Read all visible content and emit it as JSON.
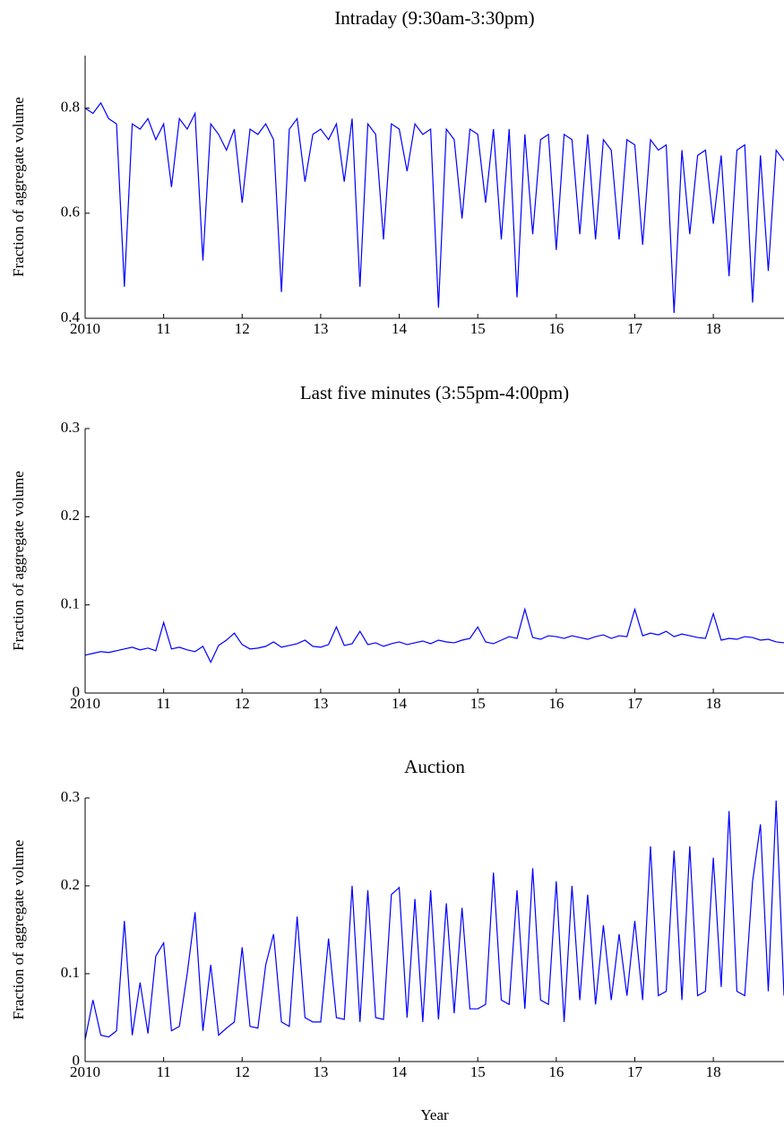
{
  "chart_data": [
    {
      "type": "line",
      "title": "Intraday (9:30am-3:30pm)",
      "ylabel": "Fraction of aggregate volume",
      "xlim": [
        2010,
        2018.9
      ],
      "ylim": [
        0.4,
        0.9
      ],
      "xticks": [
        {
          "value": 2010,
          "label": "2010"
        },
        {
          "value": 2011,
          "label": "11"
        },
        {
          "value": 2012,
          "label": "12"
        },
        {
          "value": 2013,
          "label": "13"
        },
        {
          "value": 2014,
          "label": "14"
        },
        {
          "value": 2015,
          "label": "15"
        },
        {
          "value": 2016,
          "label": "16"
        },
        {
          "value": 2017,
          "label": "17"
        },
        {
          "value": 2018,
          "label": "18"
        }
      ],
      "yticks": [
        0.4,
        0.6,
        0.8
      ],
      "x": [
        2010,
        2010.1,
        2010.2,
        2010.3,
        2010.4,
        2010.5,
        2010.6,
        2010.7,
        2010.8,
        2010.9,
        2011,
        2011.1,
        2011.2,
        2011.3,
        2011.4,
        2011.5,
        2011.6,
        2011.7,
        2011.8,
        2011.9,
        2012,
        2012.1,
        2012.2,
        2012.3,
        2012.4,
        2012.5,
        2012.6,
        2012.7,
        2012.8,
        2012.9,
        2013,
        2013.1,
        2013.2,
        2013.3,
        2013.4,
        2013.5,
        2013.6,
        2013.7,
        2013.8,
        2013.9,
        2014,
        2014.1,
        2014.2,
        2014.3,
        2014.4,
        2014.5,
        2014.6,
        2014.7,
        2014.8,
        2014.9,
        2015,
        2015.1,
        2015.2,
        2015.3,
        2015.4,
        2015.5,
        2015.6,
        2015.7,
        2015.8,
        2015.9,
        2016,
        2016.1,
        2016.2,
        2016.3,
        2016.4,
        2016.5,
        2016.6,
        2016.7,
        2016.8,
        2016.9,
        2017,
        2017.1,
        2017.2,
        2017.3,
        2017.4,
        2017.5,
        2017.6,
        2017.7,
        2017.8,
        2017.9,
        2018,
        2018.1,
        2018.2,
        2018.3,
        2018.4,
        2018.5,
        2018.6,
        2018.7,
        2018.8,
        2018.9
      ],
      "series": [
        {
          "color": "#0000ff",
          "values": [
            0.8,
            0.79,
            0.81,
            0.78,
            0.77,
            0.46,
            0.77,
            0.76,
            0.78,
            0.74,
            0.77,
            0.65,
            0.78,
            0.76,
            0.79,
            0.51,
            0.77,
            0.75,
            0.72,
            0.76,
            0.62,
            0.76,
            0.75,
            0.77,
            0.74,
            0.45,
            0.76,
            0.78,
            0.66,
            0.75,
            0.76,
            0.74,
            0.77,
            0.66,
            0.78,
            0.46,
            0.77,
            0.75,
            0.55,
            0.77,
            0.76,
            0.68,
            0.77,
            0.75,
            0.76,
            0.42,
            0.76,
            0.74,
            0.59,
            0.76,
            0.75,
            0.62,
            0.76,
            0.55,
            0.76,
            0.44,
            0.75,
            0.56,
            0.74,
            0.75,
            0.53,
            0.75,
            0.74,
            0.56,
            0.75,
            0.55,
            0.74,
            0.72,
            0.55,
            0.74,
            0.73,
            0.54,
            0.74,
            0.72,
            0.73,
            0.41,
            0.72,
            0.56,
            0.71,
            0.72,
            0.58,
            0.71,
            0.48,
            0.72,
            0.73,
            0.43,
            0.71,
            0.49,
            0.72,
            0.7
          ]
        }
      ]
    },
    {
      "type": "line",
      "title": "Last five minutes (3:55pm-4:00pm)",
      "ylabel": "Fraction of aggregate volume",
      "xlim": [
        2010,
        2018.9
      ],
      "ylim": [
        0,
        0.3
      ],
      "xticks": [
        {
          "value": 2010,
          "label": "2010"
        },
        {
          "value": 2011,
          "label": "11"
        },
        {
          "value": 2012,
          "label": "12"
        },
        {
          "value": 2013,
          "label": "13"
        },
        {
          "value": 2014,
          "label": "14"
        },
        {
          "value": 2015,
          "label": "15"
        },
        {
          "value": 2016,
          "label": "16"
        },
        {
          "value": 2017,
          "label": "17"
        },
        {
          "value": 2018,
          "label": "18"
        }
      ],
      "yticks": [
        0,
        0.1,
        0.2,
        0.3
      ],
      "x": [
        2010,
        2010.1,
        2010.2,
        2010.3,
        2010.4,
        2010.5,
        2010.6,
        2010.7,
        2010.8,
        2010.9,
        2011,
        2011.1,
        2011.2,
        2011.3,
        2011.4,
        2011.5,
        2011.6,
        2011.7,
        2011.8,
        2011.9,
        2012,
        2012.1,
        2012.2,
        2012.3,
        2012.4,
        2012.5,
        2012.6,
        2012.7,
        2012.8,
        2012.9,
        2013,
        2013.1,
        2013.2,
        2013.3,
        2013.4,
        2013.5,
        2013.6,
        2013.7,
        2013.8,
        2013.9,
        2014,
        2014.1,
        2014.2,
        2014.3,
        2014.4,
        2014.5,
        2014.6,
        2014.7,
        2014.8,
        2014.9,
        2015,
        2015.1,
        2015.2,
        2015.3,
        2015.4,
        2015.5,
        2015.6,
        2015.7,
        2015.8,
        2015.9,
        2016,
        2016.1,
        2016.2,
        2016.3,
        2016.4,
        2016.5,
        2016.6,
        2016.7,
        2016.8,
        2016.9,
        2017,
        2017.1,
        2017.2,
        2017.3,
        2017.4,
        2017.5,
        2017.6,
        2017.7,
        2017.8,
        2017.9,
        2018,
        2018.1,
        2018.2,
        2018.3,
        2018.4,
        2018.5,
        2018.6,
        2018.7,
        2018.8,
        2018.9
      ],
      "series": [
        {
          "color": "#0000ff",
          "values": [
            0.043,
            0.045,
            0.047,
            0.046,
            0.048,
            0.05,
            0.052,
            0.049,
            0.051,
            0.048,
            0.08,
            0.05,
            0.052,
            0.049,
            0.047,
            0.053,
            0.035,
            0.054,
            0.06,
            0.068,
            0.055,
            0.05,
            0.051,
            0.053,
            0.058,
            0.052,
            0.054,
            0.056,
            0.06,
            0.053,
            0.052,
            0.055,
            0.075,
            0.054,
            0.056,
            0.07,
            0.055,
            0.057,
            0.053,
            0.056,
            0.058,
            0.055,
            0.057,
            0.059,
            0.056,
            0.06,
            0.058,
            0.057,
            0.06,
            0.062,
            0.075,
            0.058,
            0.056,
            0.06,
            0.064,
            0.062,
            0.095,
            0.063,
            0.061,
            0.065,
            0.064,
            0.062,
            0.065,
            0.063,
            0.061,
            0.064,
            0.066,
            0.062,
            0.065,
            0.064,
            0.095,
            0.065,
            0.068,
            0.066,
            0.07,
            0.064,
            0.067,
            0.065,
            0.063,
            0.062,
            0.09,
            0.06,
            0.062,
            0.061,
            0.064,
            0.063,
            0.06,
            0.061,
            0.058,
            0.057
          ]
        }
      ]
    },
    {
      "type": "line",
      "title": "Auction",
      "ylabel": "Fraction of aggregate volume",
      "xlabel": "Year",
      "xlim": [
        2010,
        2018.9
      ],
      "ylim": [
        0,
        0.3
      ],
      "xticks": [
        {
          "value": 2010,
          "label": "2010"
        },
        {
          "value": 2011,
          "label": "11"
        },
        {
          "value": 2012,
          "label": "12"
        },
        {
          "value": 2013,
          "label": "13"
        },
        {
          "value": 2014,
          "label": "14"
        },
        {
          "value": 2015,
          "label": "15"
        },
        {
          "value": 2016,
          "label": "16"
        },
        {
          "value": 2017,
          "label": "17"
        },
        {
          "value": 2018,
          "label": "18"
        }
      ],
      "yticks": [
        0,
        0.1,
        0.2,
        0.3
      ],
      "x": [
        2010,
        2010.1,
        2010.2,
        2010.3,
        2010.4,
        2010.5,
        2010.6,
        2010.7,
        2010.8,
        2010.9,
        2011,
        2011.1,
        2011.2,
        2011.3,
        2011.4,
        2011.5,
        2011.6,
        2011.7,
        2011.8,
        2011.9,
        2012,
        2012.1,
        2012.2,
        2012.3,
        2012.4,
        2012.5,
        2012.6,
        2012.7,
        2012.8,
        2012.9,
        2013,
        2013.1,
        2013.2,
        2013.3,
        2013.4,
        2013.5,
        2013.6,
        2013.7,
        2013.8,
        2013.9,
        2014,
        2014.1,
        2014.2,
        2014.3,
        2014.4,
        2014.5,
        2014.6,
        2014.7,
        2014.8,
        2014.9,
        2015,
        2015.1,
        2015.2,
        2015.3,
        2015.4,
        2015.5,
        2015.6,
        2015.7,
        2015.8,
        2015.9,
        2016,
        2016.1,
        2016.2,
        2016.3,
        2016.4,
        2016.5,
        2016.6,
        2016.7,
        2016.8,
        2016.9,
        2017,
        2017.1,
        2017.2,
        2017.3,
        2017.4,
        2017.5,
        2017.6,
        2017.7,
        2017.8,
        2017.9,
        2018,
        2018.1,
        2018.2,
        2018.3,
        2018.4,
        2018.5,
        2018.6,
        2018.7,
        2018.8,
        2018.9
      ],
      "series": [
        {
          "color": "#0000ff",
          "values": [
            0.025,
            0.07,
            0.03,
            0.028,
            0.035,
            0.16,
            0.03,
            0.09,
            0.032,
            0.12,
            0.135,
            0.035,
            0.04,
            0.1,
            0.17,
            0.035,
            0.11,
            0.03,
            0.038,
            0.045,
            0.13,
            0.04,
            0.038,
            0.11,
            0.145,
            0.045,
            0.04,
            0.165,
            0.05,
            0.045,
            0.045,
            0.14,
            0.05,
            0.048,
            0.2,
            0.045,
            0.195,
            0.05,
            0.048,
            0.19,
            0.198,
            0.05,
            0.185,
            0.045,
            0.195,
            0.048,
            0.18,
            0.055,
            0.175,
            0.06,
            0.06,
            0.065,
            0.215,
            0.07,
            0.065,
            0.195,
            0.06,
            0.22,
            0.07,
            0.065,
            0.205,
            0.045,
            0.2,
            0.07,
            0.19,
            0.065,
            0.155,
            0.07,
            0.145,
            0.075,
            0.16,
            0.07,
            0.245,
            0.075,
            0.08,
            0.24,
            0.07,
            0.245,
            0.075,
            0.08,
            0.232,
            0.085,
            0.285,
            0.08,
            0.075,
            0.205,
            0.27,
            0.08,
            0.297,
            0.075
          ]
        }
      ]
    }
  ]
}
